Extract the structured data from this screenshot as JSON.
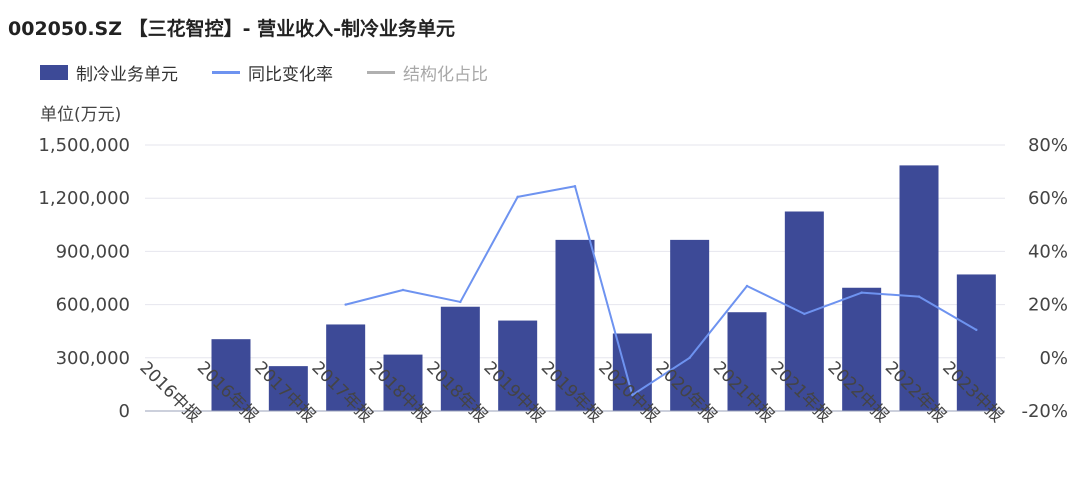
{
  "title": "002050.SZ 【三花智控】- 营业收入-制冷业务单元",
  "legend": {
    "bar_label": "制冷业务单元",
    "line_label": "同比变化率",
    "share_label": "结构化占比"
  },
  "y_unit": "单位(万元)",
  "colors": {
    "bar": "#3d4a97",
    "line": "#6e93f0",
    "share": "#b0b0b0",
    "grid": "#e6e6ee"
  },
  "chart_data": {
    "type": "bar",
    "title": "002050.SZ 【三花智控】- 营业收入-制冷业务单元",
    "categories": [
      "2016中报",
      "2016年报",
      "2017中报",
      "2017年报",
      "2018中报",
      "2018年报",
      "2019中报",
      "2019年报",
      "2020中报",
      "2020年报",
      "2021中报",
      "2021年报",
      "2022中报",
      "2022年报",
      "2023中报"
    ],
    "series": [
      {
        "name": "制冷业务单元",
        "type": "bar",
        "axis": "left",
        "values": [
          null,
          405000,
          253000,
          488000,
          318000,
          588000,
          510000,
          965000,
          437000,
          965000,
          557000,
          1125000,
          695000,
          1385000,
          770000
        ]
      },
      {
        "name": "同比变化率",
        "type": "line",
        "axis": "right",
        "unit": "%",
        "values": [
          null,
          null,
          null,
          20,
          25.5,
          21,
          60.5,
          64.5,
          -14,
          0,
          27,
          16.5,
          24.5,
          23,
          10.5
        ]
      }
    ],
    "y_left": {
      "ylim": [
        0,
        1500000
      ],
      "ticks": [
        0,
        300000,
        600000,
        900000,
        1200000,
        1500000
      ],
      "tick_labels": [
        "0",
        "300,000",
        "600,000",
        "900,000",
        "1,200,000",
        "1,500,000"
      ]
    },
    "y_right": {
      "ylim": [
        -20,
        80
      ],
      "ticks": [
        -20,
        0,
        20,
        40,
        60,
        80
      ],
      "tick_labels": [
        "-20%",
        "0%",
        "20%",
        "40%",
        "60%",
        "80%"
      ]
    },
    "grid": true,
    "legend_position": "top-left"
  }
}
